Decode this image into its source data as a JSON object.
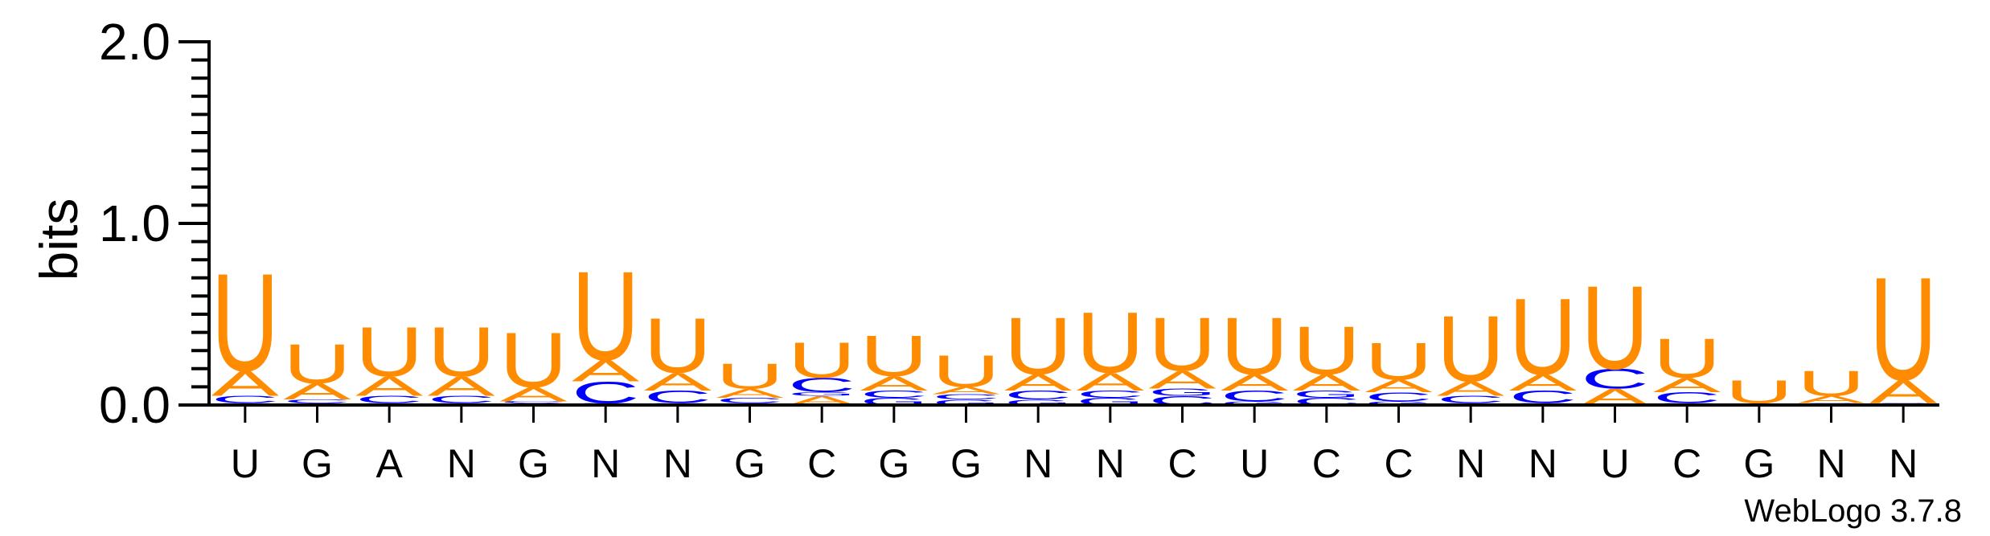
{
  "chart_data": {
    "type": "sequence-logo",
    "ylabel": "bits",
    "ylim": [
      0,
      2.0
    ],
    "yticks": [
      "0.0",
      "1.0",
      "2.0"
    ],
    "xtick_labels": [
      "U",
      "G",
      "A",
      "N",
      "G",
      "N",
      "N",
      "G",
      "C",
      "G",
      "G",
      "N",
      "N",
      "C",
      "U",
      "C",
      "C",
      "N",
      "N",
      "U",
      "C",
      "G",
      "N",
      "N"
    ],
    "positions": [
      {
        "stack": [
          {
            "base": "G",
            "bits": 0.01
          },
          {
            "base": "C",
            "bits": 0.04
          },
          {
            "base": "A",
            "bits": 0.14
          },
          {
            "base": "U",
            "bits": 0.55
          }
        ]
      },
      {
        "stack": [
          {
            "base": "G",
            "bits": 0.01
          },
          {
            "base": "C",
            "bits": 0.02
          },
          {
            "base": "A",
            "bits": 0.09
          },
          {
            "base": "U",
            "bits": 0.22
          }
        ]
      },
      {
        "stack": [
          {
            "base": "G",
            "bits": 0.01
          },
          {
            "base": "C",
            "bits": 0.04
          },
          {
            "base": "A",
            "bits": 0.11
          },
          {
            "base": "U",
            "bits": 0.28
          }
        ]
      },
      {
        "stack": [
          {
            "base": "G",
            "bits": 0.01
          },
          {
            "base": "C",
            "bits": 0.04
          },
          {
            "base": "A",
            "bits": 0.11
          },
          {
            "base": "U",
            "bits": 0.28
          }
        ]
      },
      {
        "stack": [
          {
            "base": "G",
            "bits": 0.01
          },
          {
            "base": "C",
            "bits": 0.01
          },
          {
            "base": "A",
            "bits": 0.08
          },
          {
            "base": "U",
            "bits": 0.31
          }
        ]
      },
      {
        "stack": [
          {
            "base": "G",
            "bits": 0.01
          },
          {
            "base": "C",
            "bits": 0.12
          },
          {
            "base": "A",
            "bits": 0.12
          },
          {
            "base": "U",
            "bits": 0.5
          }
        ]
      },
      {
        "stack": [
          {
            "base": "G",
            "bits": 0.01
          },
          {
            "base": "C",
            "bits": 0.07
          },
          {
            "base": "A",
            "bits": 0.1
          },
          {
            "base": "U",
            "bits": 0.31
          }
        ]
      },
      {
        "stack": [
          {
            "base": "G",
            "bits": 0.01
          },
          {
            "base": "C",
            "bits": 0.03
          },
          {
            "base": "A",
            "bits": 0.05
          },
          {
            "base": "U",
            "bits": 0.14
          }
        ]
      },
      {
        "stack": [
          {
            "base": "A",
            "bits": 0.05
          },
          {
            "base": "G",
            "bits": 0.02
          },
          {
            "base": "C",
            "bits": 0.08
          },
          {
            "base": "U",
            "bits": 0.2
          }
        ]
      },
      {
        "stack": [
          {
            "base": "G",
            "bits": 0.04
          },
          {
            "base": "C",
            "bits": 0.04
          },
          {
            "base": "A",
            "bits": 0.08
          },
          {
            "base": "U",
            "bits": 0.23
          }
        ]
      },
      {
        "stack": [
          {
            "base": "G",
            "bits": 0.03
          },
          {
            "base": "C",
            "bits": 0.03
          },
          {
            "base": "A",
            "bits": 0.04
          },
          {
            "base": "U",
            "bits": 0.18
          }
        ]
      },
      {
        "stack": [
          {
            "base": "G",
            "bits": 0.03
          },
          {
            "base": "C",
            "bits": 0.05
          },
          {
            "base": "A",
            "bits": 0.09
          },
          {
            "base": "U",
            "bits": 0.32
          }
        ]
      },
      {
        "stack": [
          {
            "base": "G",
            "bits": 0.04
          },
          {
            "base": "C",
            "bits": 0.04
          },
          {
            "base": "A",
            "bits": 0.1
          },
          {
            "base": "U",
            "bits": 0.34
          }
        ]
      },
      {
        "stack": [
          {
            "base": "C",
            "bits": 0.05
          },
          {
            "base": "G",
            "bits": 0.04
          },
          {
            "base": "A",
            "bits": 0.1
          },
          {
            "base": "U",
            "bits": 0.3
          }
        ]
      },
      {
        "stack": [
          {
            "base": "G",
            "bits": 0.02
          },
          {
            "base": "C",
            "bits": 0.06
          },
          {
            "base": "A",
            "bits": 0.09
          },
          {
            "base": "U",
            "bits": 0.32
          }
        ]
      },
      {
        "stack": [
          {
            "base": "C",
            "bits": 0.04
          },
          {
            "base": "G",
            "bits": 0.04
          },
          {
            "base": "A",
            "bits": 0.09
          },
          {
            "base": "U",
            "bits": 0.27
          }
        ]
      },
      {
        "stack": [
          {
            "base": "G",
            "bits": 0.02
          },
          {
            "base": "C",
            "bits": 0.05
          },
          {
            "base": "A",
            "bits": 0.07
          },
          {
            "base": "U",
            "bits": 0.21
          }
        ]
      },
      {
        "stack": [
          {
            "base": "G",
            "bits": 0.01
          },
          {
            "base": "C",
            "bits": 0.04
          },
          {
            "base": "A",
            "bits": 0.08
          },
          {
            "base": "U",
            "bits": 0.37
          }
        ]
      },
      {
        "stack": [
          {
            "base": "G",
            "bits": 0.01
          },
          {
            "base": "C",
            "bits": 0.07
          },
          {
            "base": "A",
            "bits": 0.09
          },
          {
            "base": "U",
            "bits": 0.43
          }
        ]
      },
      {
        "stack": [
          {
            "base": "A",
            "bits": 0.09
          },
          {
            "base": "C",
            "bits": 0.11
          },
          {
            "base": "U",
            "bits": 0.47
          }
        ]
      },
      {
        "stack": [
          {
            "base": "G",
            "bits": 0.01
          },
          {
            "base": "C",
            "bits": 0.06
          },
          {
            "base": "A",
            "bits": 0.08
          },
          {
            "base": "U",
            "bits": 0.22
          }
        ]
      },
      {
        "stack": [
          {
            "base": "A",
            "bits": 0.01
          },
          {
            "base": "U",
            "bits": 0.13
          }
        ]
      },
      {
        "stack": [
          {
            "base": "G",
            "bits": 0.01
          },
          {
            "base": "A",
            "bits": 0.04
          },
          {
            "base": "U",
            "bits": 0.14
          }
        ]
      },
      {
        "stack": [
          {
            "base": "G",
            "bits": 0.01
          },
          {
            "base": "A",
            "bits": 0.13
          },
          {
            "base": "U",
            "bits": 0.58
          }
        ]
      }
    ],
    "colors": {
      "A": "#FF8C00",
      "U": "#FF8C00",
      "C": "#0000FF",
      "G": "#0000FF",
      "axis": "#000000"
    },
    "credit": "WebLogo 3.7.8"
  }
}
